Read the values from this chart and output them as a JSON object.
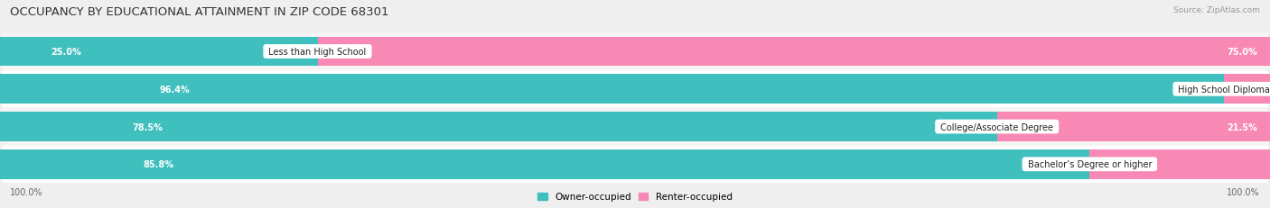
{
  "title": "OCCUPANCY BY EDUCATIONAL ATTAINMENT IN ZIP CODE 68301",
  "source": "Source: ZipAtlas.com",
  "categories": [
    "Less than High School",
    "High School Diploma",
    "College/Associate Degree",
    "Bachelor’s Degree or higher"
  ],
  "owner_values": [
    25.0,
    96.4,
    78.5,
    85.8
  ],
  "renter_values": [
    75.0,
    3.7,
    21.5,
    14.2
  ],
  "owner_color": "#40BFBF",
  "renter_color": "#F888B4",
  "bg_color": "#EFEFEF",
  "row_bg_even": "#FFFFFF",
  "row_bg_odd": "#F5F5F5",
  "axis_label_left": "100.0%",
  "axis_label_right": "100.0%",
  "legend_owner": "Owner-occupied",
  "legend_renter": "Renter-occupied",
  "title_fontsize": 9.5,
  "label_fontsize": 7,
  "pct_fontsize": 7,
  "source_fontsize": 6.5,
  "legend_fontsize": 7.5,
  "figsize": [
    14.06,
    2.32
  ]
}
